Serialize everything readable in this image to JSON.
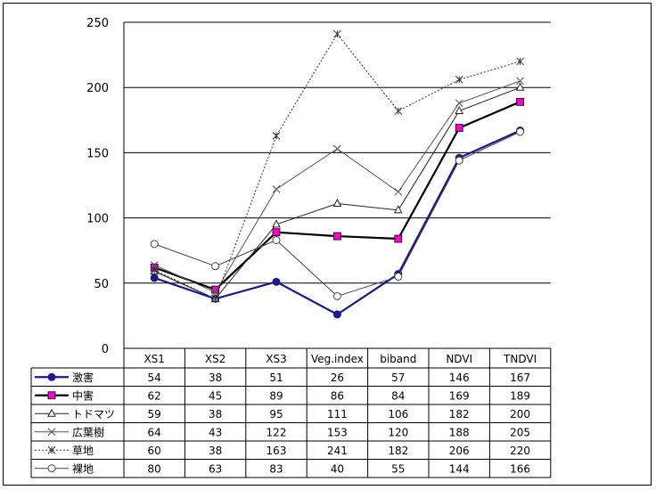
{
  "chart_data": {
    "type": "line",
    "title": "",
    "xlabel": "",
    "ylabel": "",
    "ylim": [
      0,
      250
    ],
    "yticks": [
      0,
      50,
      100,
      150,
      200,
      250
    ],
    "grid": "horizontal major gridlines",
    "legend": "data table below plot",
    "categories": [
      "XS1",
      "XS2",
      "XS3",
      "Veg.index",
      "biband",
      "NDVI",
      "TNDVI"
    ],
    "series": [
      {
        "name": "激害",
        "color": "#1a1a8c",
        "marker": "filled-circle",
        "line": "solid-thick",
        "values": [
          54,
          38,
          51,
          26,
          57,
          146,
          167
        ]
      },
      {
        "name": "中害",
        "color": "#000000",
        "marker": "magenta-square",
        "marker_color": "#ff00cc",
        "line": "solid-thick",
        "values": [
          62,
          45,
          89,
          86,
          84,
          169,
          189
        ]
      },
      {
        "name": "トドマツ",
        "color": "#222222",
        "marker": "open-triangle",
        "line": "solid",
        "values": [
          59,
          38,
          95,
          111,
          106,
          182,
          200
        ]
      },
      {
        "name": "広葉樹",
        "color": "#555555",
        "marker": "x",
        "line": "solid",
        "values": [
          64,
          43,
          122,
          153,
          120,
          188,
          205
        ]
      },
      {
        "name": "草地",
        "color": "#333333",
        "marker": "asterisk",
        "line": "dotted",
        "values": [
          60,
          38,
          163,
          241,
          182,
          206,
          220
        ]
      },
      {
        "name": "裸地",
        "color": "#444444",
        "marker": "open-circle",
        "line": "solid",
        "values": [
          80,
          63,
          83,
          40,
          55,
          144,
          166
        ]
      }
    ]
  }
}
